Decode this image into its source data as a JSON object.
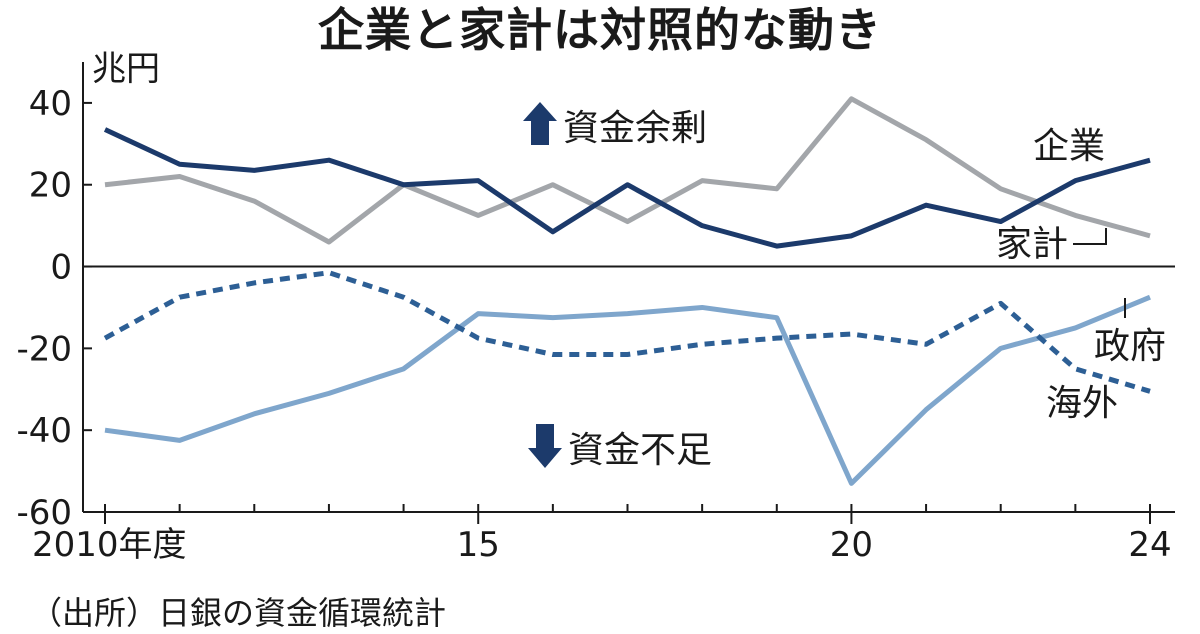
{
  "title": "企業と家計は対照的な動き",
  "source": "（出所）日銀の資金循環統計",
  "chart_data": {
    "type": "line",
    "unit_label": "兆円",
    "x": [
      2010,
      2011,
      2012,
      2013,
      2014,
      2015,
      2016,
      2017,
      2018,
      2019,
      2020,
      2021,
      2022,
      2023,
      2024
    ],
    "x_ticks": [
      {
        "value": 2010,
        "label": "2010年度"
      },
      {
        "value": 2015,
        "label": "15"
      },
      {
        "value": 2020,
        "label": "20"
      },
      {
        "value": 2024,
        "label": "24"
      }
    ],
    "ylim": [
      -60,
      50
    ],
    "y_ticks": [
      {
        "value": 40,
        "label": "40"
      },
      {
        "value": 20,
        "label": "20"
      },
      {
        "value": 0,
        "label": "0"
      },
      {
        "value": -20,
        "label": "-20"
      },
      {
        "value": -40,
        "label": "-40"
      },
      {
        "value": -60,
        "label": "-60"
      }
    ],
    "series": [
      {
        "name": "家計",
        "color": "#a3a6aa",
        "style": "solid",
        "values": [
          20,
          22,
          16,
          6,
          20,
          12.5,
          20,
          11,
          21,
          19,
          41,
          31,
          19,
          12.5,
          7.5
        ]
      },
      {
        "name": "企業",
        "color": "#1c3a6b",
        "style": "solid",
        "values": [
          33.5,
          25,
          23.5,
          26,
          20,
          21,
          8.5,
          20,
          10,
          5,
          7.5,
          15,
          11,
          21,
          26
        ]
      },
      {
        "name": "政府",
        "color": "#7fa6cc",
        "style": "solid",
        "values": [
          -40,
          -42.5,
          -36,
          -31,
          -25,
          -11.5,
          -12.5,
          -11.5,
          -10,
          -12.5,
          -53,
          -35,
          -20,
          -15,
          -7.5
        ]
      },
      {
        "name": "海外",
        "color": "#2d5f95",
        "style": "dashed",
        "values": [
          -17.5,
          -7.5,
          -4,
          -1.5,
          -7.5,
          -17.5,
          -21.5,
          -21.5,
          -19,
          -17.5,
          -16.5,
          -19,
          -9,
          -25,
          -30.5
        ]
      }
    ],
    "annotations": [
      {
        "text": "資金余剰",
        "arrow": "up"
      },
      {
        "text": "資金不足",
        "arrow": "down"
      }
    ]
  }
}
